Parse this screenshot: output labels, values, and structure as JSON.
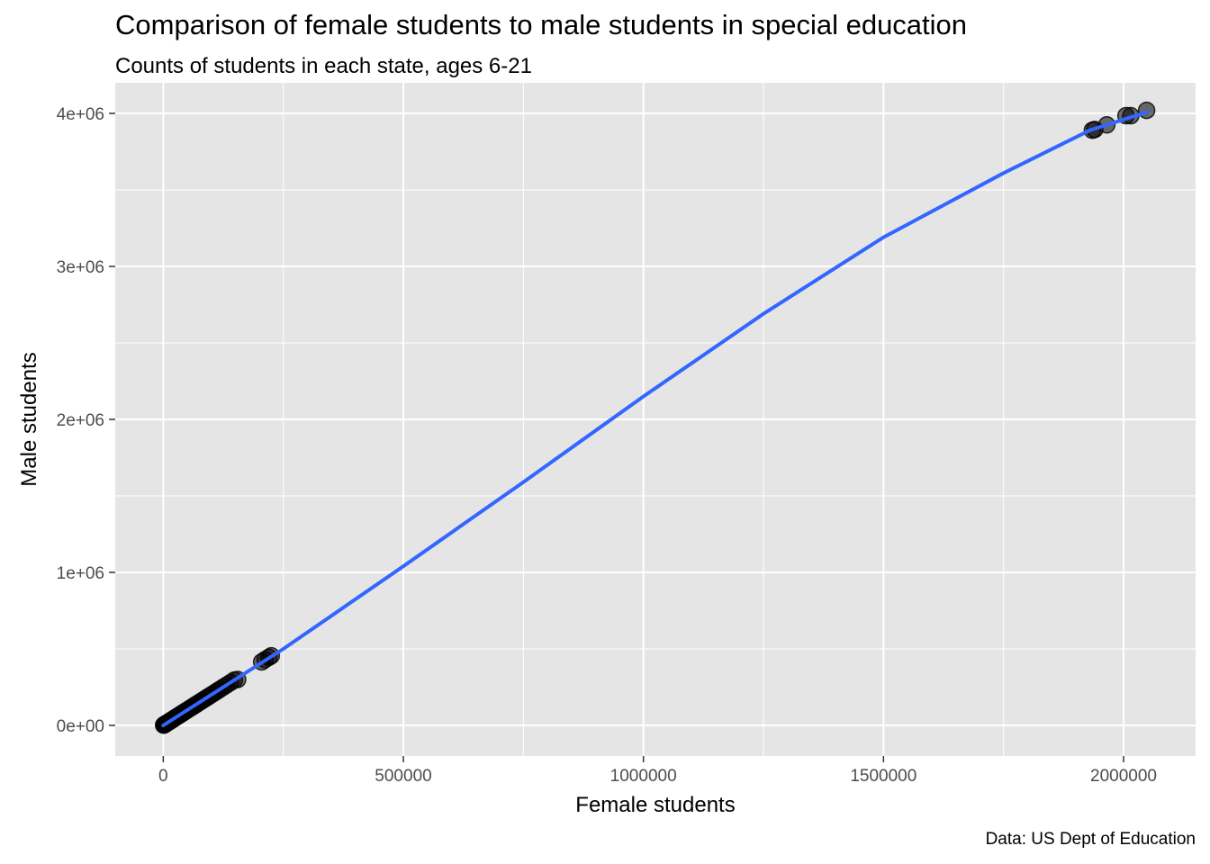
{
  "chart_data": {
    "type": "scatter",
    "title": "Comparison of female students to male students in special education",
    "subtitle": "Counts of students in each state, ages 6-21",
    "caption": "Data: US Dept of Education",
    "xlabel": "Female students",
    "ylabel": "Male students",
    "xlim": [
      -100000,
      2150000
    ],
    "ylim": [
      -200000,
      4200000
    ],
    "x_ticks": [
      0,
      500000,
      1000000,
      1500000,
      2000000
    ],
    "x_tick_labels": [
      "0",
      "500000",
      "1000000",
      "1500000",
      "2000000"
    ],
    "y_ticks": [
      0,
      1000000,
      2000000,
      3000000,
      4000000
    ],
    "y_tick_labels": [
      "0e+00",
      "1e+06",
      "2e+06",
      "3e+06",
      "4e+06"
    ],
    "grid": true,
    "colors": {
      "panel_background": "#e5e5e5",
      "grid_line": "#ffffff",
      "point_fill": "#000000",
      "point_alpha": 0.55,
      "smooth_line": "#3366ff"
    },
    "points": [
      {
        "x": 800,
        "y": 1700
      },
      {
        "x": 1500,
        "y": 3000
      },
      {
        "x": 2500,
        "y": 5000
      },
      {
        "x": 3500,
        "y": 7000
      },
      {
        "x": 5000,
        "y": 10000
      },
      {
        "x": 6500,
        "y": 13000
      },
      {
        "x": 8000,
        "y": 16000
      },
      {
        "x": 10000,
        "y": 20000
      },
      {
        "x": 12000,
        "y": 24000
      },
      {
        "x": 14000,
        "y": 28000
      },
      {
        "x": 16000,
        "y": 32000
      },
      {
        "x": 18000,
        "y": 36000
      },
      {
        "x": 20000,
        "y": 40000
      },
      {
        "x": 23000,
        "y": 46000
      },
      {
        "x": 26000,
        "y": 52000
      },
      {
        "x": 29000,
        "y": 58000
      },
      {
        "x": 32000,
        "y": 64000
      },
      {
        "x": 35000,
        "y": 70000
      },
      {
        "x": 38000,
        "y": 76000
      },
      {
        "x": 41000,
        "y": 82000
      },
      {
        "x": 44000,
        "y": 88000
      },
      {
        "x": 47000,
        "y": 94000
      },
      {
        "x": 50000,
        "y": 100000
      },
      {
        "x": 54000,
        "y": 108000
      },
      {
        "x": 58000,
        "y": 116000
      },
      {
        "x": 62000,
        "y": 124000
      },
      {
        "x": 66000,
        "y": 132000
      },
      {
        "x": 70000,
        "y": 140000
      },
      {
        "x": 75000,
        "y": 150000
      },
      {
        "x": 80000,
        "y": 160000
      },
      {
        "x": 85000,
        "y": 170000
      },
      {
        "x": 90000,
        "y": 180000
      },
      {
        "x": 95000,
        "y": 190000
      },
      {
        "x": 100000,
        "y": 200000
      },
      {
        "x": 106000,
        "y": 212000
      },
      {
        "x": 112000,
        "y": 224000
      },
      {
        "x": 118000,
        "y": 236000
      },
      {
        "x": 125000,
        "y": 250000
      },
      {
        "x": 132000,
        "y": 264000
      },
      {
        "x": 140000,
        "y": 280000
      },
      {
        "x": 148000,
        "y": 296000
      },
      {
        "x": 155000,
        "y": 300000
      },
      {
        "x": 205000,
        "y": 415000
      },
      {
        "x": 212000,
        "y": 430000
      },
      {
        "x": 220000,
        "y": 445000
      },
      {
        "x": 225000,
        "y": 455000
      },
      {
        "x": 1935000,
        "y": 3890000
      },
      {
        "x": 1940000,
        "y": 3895000
      },
      {
        "x": 1965000,
        "y": 3925000
      },
      {
        "x": 2005000,
        "y": 3985000
      },
      {
        "x": 2015000,
        "y": 3985000
      },
      {
        "x": 2048000,
        "y": 4020000
      }
    ],
    "smooth_line": [
      {
        "x": 0,
        "y": 0
      },
      {
        "x": 250000,
        "y": 500000
      },
      {
        "x": 500000,
        "y": 1040000
      },
      {
        "x": 750000,
        "y": 1590000
      },
      {
        "x": 1000000,
        "y": 2150000
      },
      {
        "x": 1250000,
        "y": 2690000
      },
      {
        "x": 1500000,
        "y": 3190000
      },
      {
        "x": 1750000,
        "y": 3610000
      },
      {
        "x": 1930000,
        "y": 3890000
      },
      {
        "x": 2050000,
        "y": 4010000
      }
    ]
  }
}
